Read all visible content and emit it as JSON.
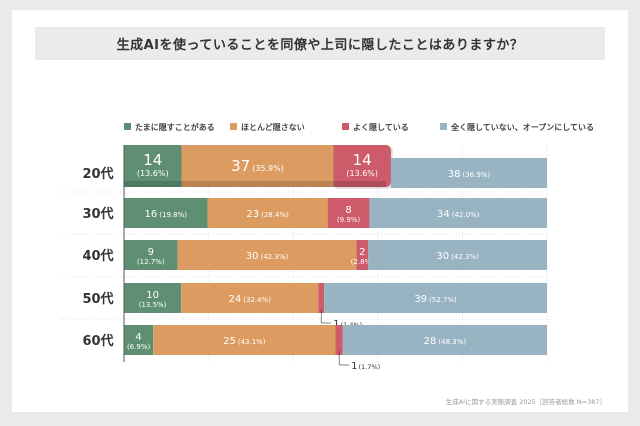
{
  "title": "生成AIを使っていることを同僚や上司に隠したことはありますか？",
  "source": "生成AIに関する実態調査 2025［回答者総数 N=387］",
  "chart_data": {
    "type": "bar",
    "orientation": "horizontal",
    "stacked": true,
    "normalized": true,
    "legend_position": "top",
    "grid": true,
    "highlighted_category": "20代",
    "categories": [
      "20代",
      "30代",
      "40代",
      "50代",
      "60代"
    ],
    "series": [
      {
        "name": "たまに隠すことがある",
        "color": "#5f8f72",
        "values": [
          14,
          16,
          9,
          10,
          4
        ],
        "percents": [
          "13.6%",
          "19.8%",
          "12.7%",
          "13.5%",
          "6.9%"
        ]
      },
      {
        "name": "ほとんど隠さない",
        "color": "#dc9b60",
        "values": [
          37,
          23,
          30,
          24,
          25
        ],
        "percents": [
          "35.9%",
          "28.4%",
          "42.3%",
          "32.4%",
          "43.1%"
        ]
      },
      {
        "name": "よく隠している",
        "color": "#cd5b6a",
        "values": [
          14,
          8,
          2,
          1,
          1
        ],
        "percents": [
          "13.6%",
          "9.9%",
          "2.8%",
          "1.4%",
          "1.7%"
        ]
      },
      {
        "name": "全く隠していない、オープンにしている",
        "color": "#98b4c3",
        "values": [
          38,
          34,
          30,
          39,
          28
        ],
        "percents": [
          "36.9%",
          "42.0%",
          "42.3%",
          "52.7%",
          "48.3%"
        ]
      }
    ]
  }
}
